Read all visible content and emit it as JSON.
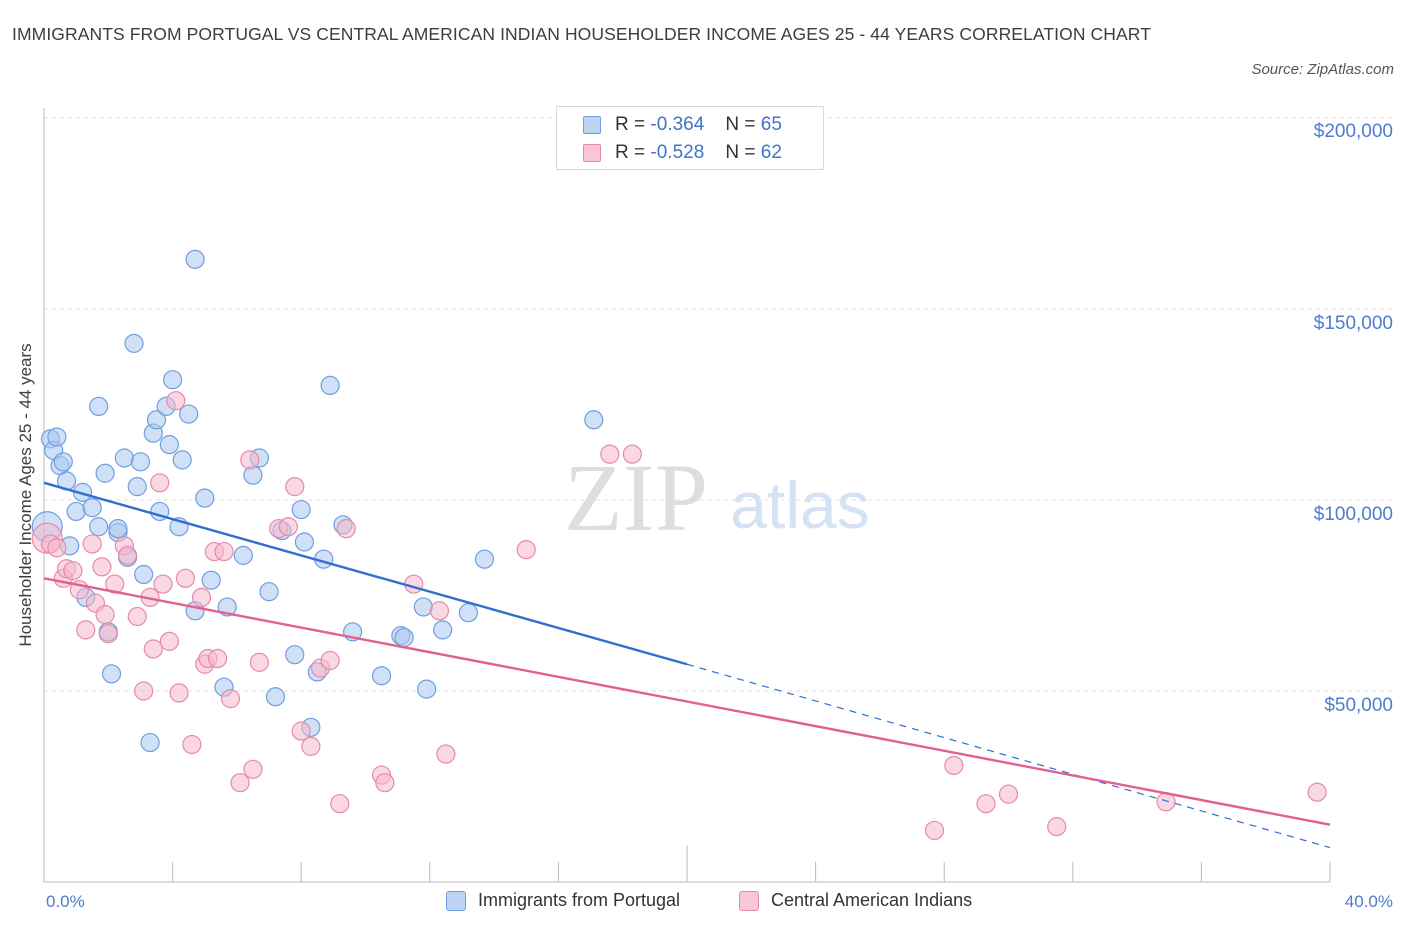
{
  "header": {
    "title": "IMMIGRANTS FROM PORTUGAL VS CENTRAL AMERICAN INDIAN HOUSEHOLDER INCOME AGES 25 - 44 YEARS CORRELATION CHART",
    "source": "Source: ZipAtlas.com"
  },
  "watermark": {
    "zip": "ZIP",
    "atlas": "atlas"
  },
  "legend": {
    "rows": [
      {
        "r_label": "R =",
        "r_value": "-0.364",
        "n_label": "N =",
        "n_value": "65"
      },
      {
        "r_label": "R =",
        "r_value": "-0.528",
        "n_label": "N =",
        "n_value": "62"
      }
    ]
  },
  "chart_data": {
    "type": "scatter",
    "title": "IMMIGRANTS FROM PORTUGAL VS CENTRAL AMERICAN INDIAN HOUSEHOLDER INCOME AGES 25 - 44 YEARS CORRELATION CHART",
    "xlabel": "",
    "ylabel": "Householder Income Ages 25 - 44 years",
    "xlim": [
      0,
      40
    ],
    "ylim": [
      0,
      200000
    ],
    "x_tick_labels": [
      "0.0%",
      "40.0%"
    ],
    "y_ticks": [
      {
        "value": 200000,
        "label": "$200,000"
      },
      {
        "value": 150000,
        "label": "$150,000"
      },
      {
        "value": 100000,
        "label": "$100,000"
      },
      {
        "value": 50000,
        "label": "$50,000"
      }
    ],
    "grid": true,
    "legend_position": "top-center",
    "series": [
      {
        "name": "Immigrants from Portugal",
        "color": "#aac8f0",
        "stroke": "#6f9ee0",
        "line_color": "#2f6fce",
        "trend": {
          "x0": 0.0,
          "y0": 104500,
          "x1": 20.0,
          "y1": 57000,
          "dashed_to_x": 40.0,
          "dashed_to_y": 9000
        },
        "points": [
          [
            0.1,
            93000
          ],
          [
            0.2,
            116000
          ],
          [
            0.3,
            113000
          ],
          [
            0.4,
            116500
          ],
          [
            0.5,
            109000
          ],
          [
            0.6,
            110000
          ],
          [
            0.7,
            105000
          ],
          [
            0.8,
            88000
          ],
          [
            1.0,
            97000
          ],
          [
            1.2,
            102000
          ],
          [
            1.3,
            74500
          ],
          [
            1.5,
            98000
          ],
          [
            1.7,
            124500
          ],
          [
            1.7,
            93000
          ],
          [
            1.9,
            107000
          ],
          [
            2.0,
            65500
          ],
          [
            2.1,
            54500
          ],
          [
            2.3,
            91500
          ],
          [
            2.3,
            92500
          ],
          [
            2.5,
            111000
          ],
          [
            2.6,
            85000
          ],
          [
            2.8,
            141000
          ],
          [
            2.9,
            103500
          ],
          [
            3.0,
            110000
          ],
          [
            3.1,
            80500
          ],
          [
            3.3,
            36500
          ],
          [
            3.4,
            117500
          ],
          [
            3.5,
            121000
          ],
          [
            3.6,
            97000
          ],
          [
            3.8,
            124500
          ],
          [
            3.9,
            114500
          ],
          [
            4.0,
            131500
          ],
          [
            4.2,
            93000
          ],
          [
            4.3,
            110500
          ],
          [
            4.5,
            122500
          ],
          [
            4.7,
            71000
          ],
          [
            4.7,
            163000
          ],
          [
            5.0,
            100500
          ],
          [
            5.2,
            79000
          ],
          [
            5.6,
            51000
          ],
          [
            5.7,
            72000
          ],
          [
            6.2,
            85500
          ],
          [
            6.5,
            106500
          ],
          [
            6.7,
            111000
          ],
          [
            7.0,
            76000
          ],
          [
            7.2,
            48500
          ],
          [
            7.4,
            92000
          ],
          [
            7.8,
            59500
          ],
          [
            8.0,
            97500
          ],
          [
            8.1,
            89000
          ],
          [
            8.3,
            40500
          ],
          [
            8.5,
            55000
          ],
          [
            8.7,
            84500
          ],
          [
            8.9,
            130000
          ],
          [
            9.3,
            93500
          ],
          [
            9.6,
            65500
          ],
          [
            10.5,
            54000
          ],
          [
            11.1,
            64500
          ],
          [
            11.2,
            64000
          ],
          [
            11.8,
            72000
          ],
          [
            11.9,
            50500
          ],
          [
            12.4,
            66000
          ],
          [
            13.2,
            70500
          ],
          [
            13.7,
            84500
          ],
          [
            17.1,
            121000
          ]
        ]
      },
      {
        "name": "Central American Indians",
        "color": "#f5b8cc",
        "stroke": "#e68aa8",
        "line_color": "#e2608c",
        "trend": {
          "x0": 0.0,
          "y0": 79500,
          "x1": 40.0,
          "y1": 15000
        },
        "points": [
          [
            0.1,
            90000
          ],
          [
            0.2,
            88500
          ],
          [
            0.4,
            87500
          ],
          [
            0.6,
            79500
          ],
          [
            0.7,
            82000
          ],
          [
            0.9,
            81500
          ],
          [
            1.1,
            76500
          ],
          [
            1.3,
            66000
          ],
          [
            1.5,
            88500
          ],
          [
            1.6,
            73000
          ],
          [
            1.8,
            82500
          ],
          [
            1.9,
            70000
          ],
          [
            2.0,
            65000
          ],
          [
            2.2,
            78000
          ],
          [
            2.5,
            88000
          ],
          [
            2.6,
            85500
          ],
          [
            2.9,
            69500
          ],
          [
            3.1,
            50000
          ],
          [
            3.3,
            74500
          ],
          [
            3.4,
            61000
          ],
          [
            3.6,
            104500
          ],
          [
            3.7,
            78000
          ],
          [
            3.9,
            63000
          ],
          [
            4.1,
            126000
          ],
          [
            4.2,
            49500
          ],
          [
            4.4,
            79500
          ],
          [
            4.6,
            36000
          ],
          [
            4.9,
            74500
          ],
          [
            5.0,
            57000
          ],
          [
            5.1,
            58500
          ],
          [
            5.3,
            86500
          ],
          [
            5.4,
            58500
          ],
          [
            5.6,
            86500
          ],
          [
            5.8,
            48000
          ],
          [
            6.1,
            26000
          ],
          [
            6.4,
            110500
          ],
          [
            6.5,
            29500
          ],
          [
            6.7,
            57500
          ],
          [
            7.3,
            92500
          ],
          [
            7.6,
            93000
          ],
          [
            7.8,
            103500
          ],
          [
            8.0,
            39500
          ],
          [
            8.3,
            35500
          ],
          [
            8.6,
            56000
          ],
          [
            8.9,
            58000
          ],
          [
            9.2,
            20500
          ],
          [
            9.4,
            92500
          ],
          [
            10.5,
            28000
          ],
          [
            10.6,
            26000
          ],
          [
            11.5,
            78000
          ],
          [
            12.3,
            71000
          ],
          [
            12.5,
            33500
          ],
          [
            15.0,
            87000
          ],
          [
            17.6,
            112000
          ],
          [
            18.3,
            112000
          ],
          [
            27.7,
            13500
          ],
          [
            28.3,
            30500
          ],
          [
            29.3,
            20500
          ],
          [
            30.0,
            23000
          ],
          [
            31.5,
            14500
          ],
          [
            34.9,
            21000
          ],
          [
            39.6,
            23500
          ]
        ]
      }
    ]
  }
}
